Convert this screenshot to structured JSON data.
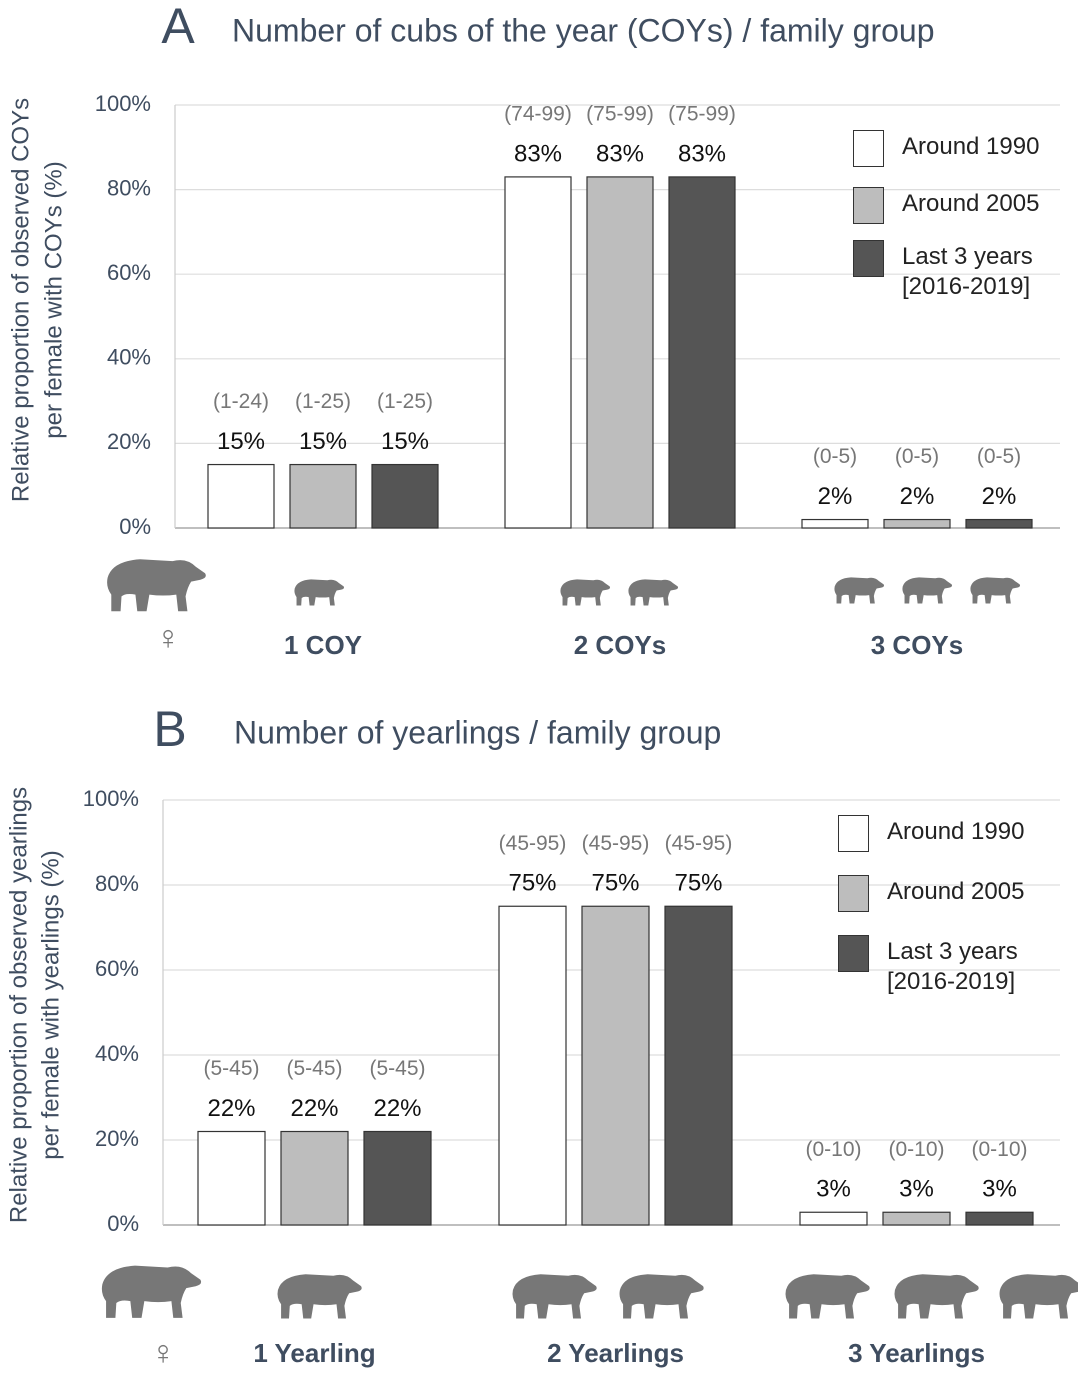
{
  "chart_data": [
    {
      "type": "bar",
      "panel_label": "A",
      "title": "Number of cubs of the year (COYs) / family group",
      "ylabel": [
        "Relative proportion of observed COYs",
        "per female with COYs (%)"
      ],
      "female_symbol": "♀",
      "categories": [
        "1 COY",
        "2 COYs",
        "3 COYs"
      ],
      "series": [
        {
          "name": "Around 1990",
          "color": "#ffffff",
          "values": [
            15,
            83,
            2
          ],
          "value_labels": [
            "15%",
            "83%",
            "2%"
          ],
          "ranges": [
            "(1-24)",
            "(74-99)",
            "(0-5)"
          ]
        },
        {
          "name": "Around 2005",
          "color": "#bdbdbd",
          "values": [
            15,
            83,
            2
          ],
          "value_labels": [
            "15%",
            "83%",
            "2%"
          ],
          "ranges": [
            "(1-25)",
            "(75-99)",
            "(0-5)"
          ]
        },
        {
          "name": "Last 3 years [2016-2019]",
          "color": "#555555",
          "values": [
            15,
            83,
            2
          ],
          "value_labels": [
            "15%",
            "83%",
            "2%"
          ],
          "ranges": [
            "(1-25)",
            "(75-99)",
            "(0-5)"
          ]
        }
      ],
      "ylim": [
        0,
        100
      ],
      "yticks": [
        {
          "value": 0,
          "label": "0%"
        },
        {
          "value": 20,
          "label": "20%"
        },
        {
          "value": 40,
          "label": "40%"
        },
        {
          "value": 60,
          "label": "60%"
        },
        {
          "value": 80,
          "label": "80%"
        },
        {
          "value": 100,
          "label": "100%"
        }
      ],
      "grid": true,
      "legend": "upper right"
    },
    {
      "type": "bar",
      "panel_label": "B",
      "title": "Number of yearlings / family group",
      "ylabel": [
        "Relative proportion of observed yearlings",
        "per female with yearlings  (%)"
      ],
      "female_symbol": "♀",
      "categories": [
        "1 Yearling",
        "2 Yearlings",
        "3 Yearlings"
      ],
      "series": [
        {
          "name": "Around 1990",
          "color": "#ffffff",
          "values": [
            22,
            75,
            3
          ],
          "value_labels": [
            "22%",
            "75%",
            "3%"
          ],
          "ranges": [
            "(5-45)",
            "(45-95)",
            "(0-10)"
          ]
        },
        {
          "name": "Around 2005",
          "color": "#bdbdbd",
          "values": [
            22,
            75,
            3
          ],
          "value_labels": [
            "22%",
            "75%",
            "3%"
          ],
          "ranges": [
            "(5-45)",
            "(45-95)",
            "(0-10)"
          ]
        },
        {
          "name": "Last 3 years [2016-2019]",
          "color": "#555555",
          "values": [
            22,
            75,
            3
          ],
          "value_labels": [
            "22%",
            "75%",
            "3%"
          ],
          "ranges": [
            "(5-45)",
            "(45-95)",
            "(0-10)"
          ]
        }
      ],
      "ylim": [
        0,
        100
      ],
      "yticks": [
        {
          "value": 0,
          "label": "0%"
        },
        {
          "value": 20,
          "label": "20%"
        },
        {
          "value": 40,
          "label": "40%"
        },
        {
          "value": 60,
          "label": "60%"
        },
        {
          "value": 80,
          "label": "80%"
        },
        {
          "value": 100,
          "label": "100%"
        }
      ],
      "grid": true,
      "legend": "upper right"
    }
  ]
}
